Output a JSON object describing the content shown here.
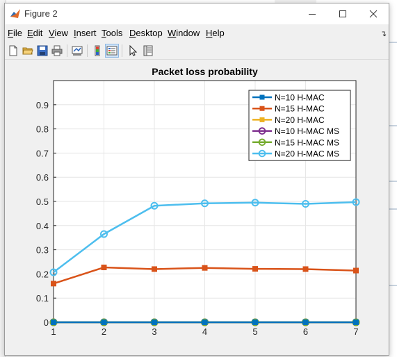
{
  "window": {
    "title": "Figure 2"
  },
  "menu": {
    "items": [
      {
        "pre": "",
        "mn": "F",
        "rest": "ile"
      },
      {
        "pre": "",
        "mn": "E",
        "rest": "dit"
      },
      {
        "pre": "",
        "mn": "V",
        "rest": "iew"
      },
      {
        "pre": "",
        "mn": "I",
        "rest": "nsert"
      },
      {
        "pre": "",
        "mn": "T",
        "rest": "ools"
      },
      {
        "pre": "",
        "mn": "D",
        "rest": "esktop"
      },
      {
        "pre": "",
        "mn": "W",
        "rest": "indow"
      },
      {
        "pre": "",
        "mn": "H",
        "rest": "elp"
      }
    ]
  },
  "toolbar": {
    "icons": [
      "new-figure-icon",
      "open-file-icon",
      "save-icon",
      "print-icon",
      "link-plot-icon",
      "colorbar-icon",
      "legend-icon",
      "pointer-icon",
      "property-inspector-icon"
    ]
  },
  "colors": {
    "blue": "#0072BD",
    "orange": "#D95319",
    "yellow": "#EDB120",
    "purple": "#7E2F8E",
    "green": "#77AC30",
    "cyan": "#4DBEEE"
  },
  "chart_data": {
    "type": "line",
    "title": "Packet loss probability",
    "xlabel": "",
    "ylabel": "",
    "x": [
      1,
      2,
      3,
      4,
      5,
      6,
      7
    ],
    "xlim": [
      1,
      7
    ],
    "ylim": [
      0,
      1
    ],
    "yticks": [
      0,
      0.1,
      0.2,
      0.3,
      0.4,
      0.5,
      0.6,
      0.7,
      0.8,
      0.9
    ],
    "yticklabels": [
      "0",
      "0.1",
      "0.2",
      "0.3",
      "0.4",
      "0.5",
      "0.6",
      "0.7",
      "0.8",
      "0.9"
    ],
    "grid": true,
    "legend_position": "top-right",
    "series": [
      {
        "name": "N=10 H-MAC",
        "color": "#0072BD",
        "marker": "square",
        "values": [
          0,
          0,
          0,
          0,
          0,
          0,
          0
        ]
      },
      {
        "name": "N=15 H-MAC",
        "color": "#D95319",
        "marker": "square",
        "values": [
          0.16,
          0.227,
          0.22,
          0.225,
          0.221,
          0.22,
          0.214
        ]
      },
      {
        "name": "N=20 H-MAC",
        "color": "#EDB120",
        "marker": "square",
        "values": [
          0,
          0,
          0,
          0,
          0,
          0,
          0
        ]
      },
      {
        "name": "N=10 H-MAC MS",
        "color": "#7E2F8E",
        "marker": "circle",
        "values": [
          0,
          0,
          0,
          0,
          0,
          0,
          0
        ]
      },
      {
        "name": "N=15 H-MAC MS",
        "color": "#77AC30",
        "marker": "circle",
        "values": [
          0,
          0,
          0,
          0,
          0,
          0,
          0
        ]
      },
      {
        "name": "N=20 H-MAC MS",
        "color": "#4DBEEE",
        "marker": "circle",
        "values": [
          0.207,
          0.365,
          0.482,
          0.492,
          0.495,
          0.49,
          0.497
        ]
      }
    ]
  }
}
